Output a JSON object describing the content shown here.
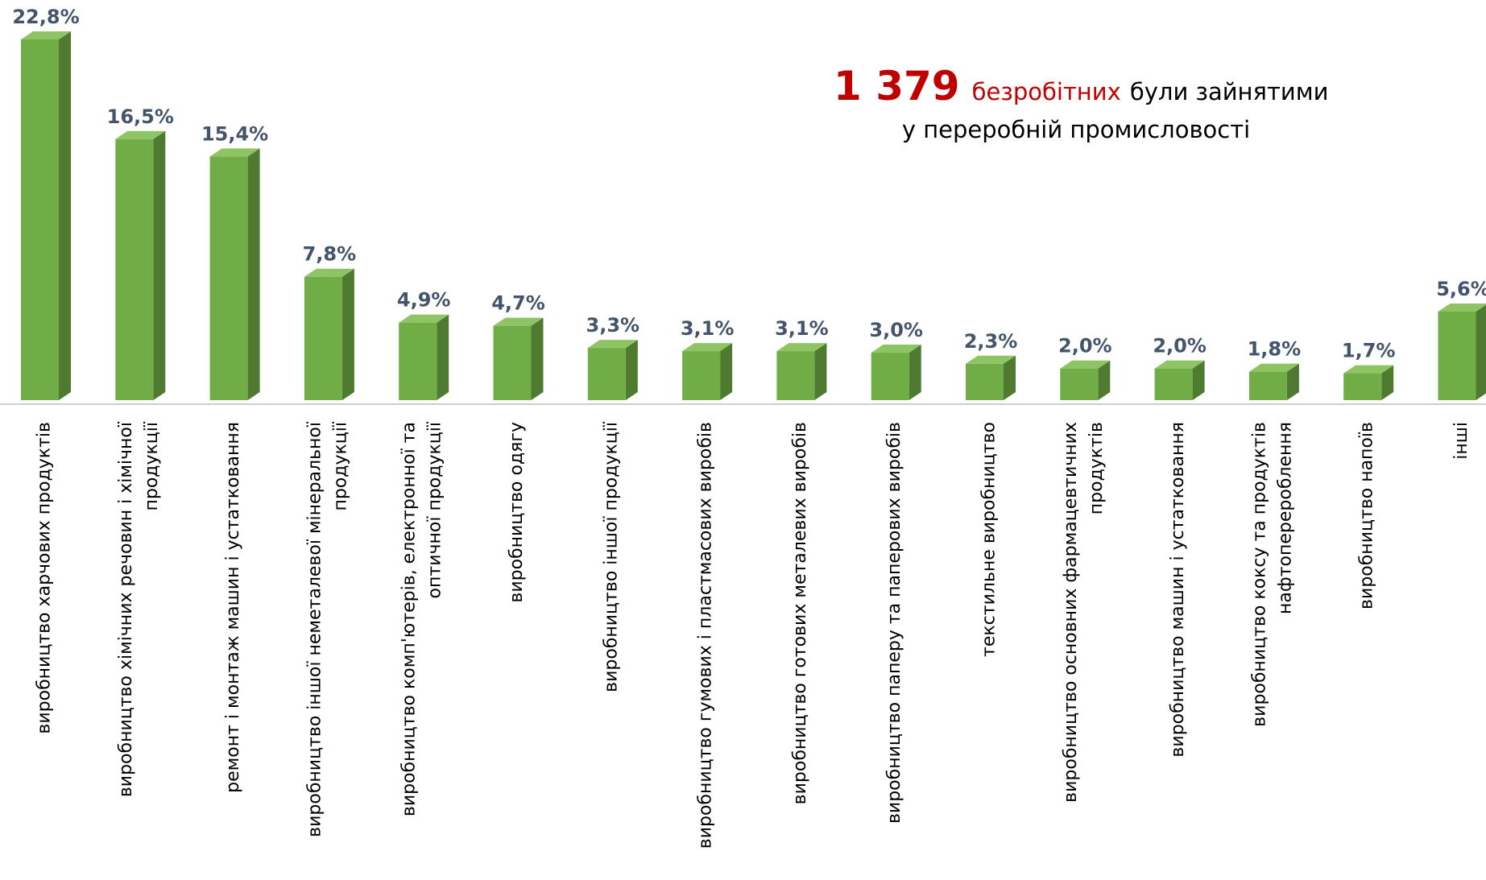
{
  "chart_data": {
    "type": "bar",
    "annotation": {
      "number": "1 379",
      "highlight": "безробітних",
      "text": "були зайнятими",
      "line2": "у переробній промисловості"
    },
    "categories": [
      [
        "виробництво харчових продуктів"
      ],
      [
        "виробництво хімічних речовин і хімічної",
        "продукції"
      ],
      [
        "ремонт і монтаж машин і устатковання"
      ],
      [
        "виробництво іншої неметалевої мінеральної",
        "продукції"
      ],
      [
        "виробництво комп'ютерів, електронної та",
        "оптичної продукції"
      ],
      [
        "виробництво одягу"
      ],
      [
        "виробництво іншої продукції"
      ],
      [
        "виробництво гумових і пластмасових виробів"
      ],
      [
        "виробництво готових металевих виробів"
      ],
      [
        "виробництво паперу та паперових виробів"
      ],
      [
        "текстильне виробництво"
      ],
      [
        "виробництво основних фармацевтичних",
        "продуктів"
      ],
      [
        "виробництво машин і устатковання"
      ],
      [
        "виробництво коксу та продуктів",
        "нафтоперероблення"
      ],
      [
        "виробництво напоїв"
      ],
      [
        "інші"
      ]
    ],
    "values": [
      22.8,
      16.5,
      15.4,
      7.8,
      4.9,
      4.7,
      3.3,
      3.1,
      3.1,
      3.0,
      2.3,
      2.0,
      2.0,
      1.8,
      1.7,
      5.6
    ],
    "value_labels": [
      "22,8%",
      "16,5%",
      "15,4%",
      "7,8%",
      "4,9%",
      "4,7%",
      "3,3%",
      "3,1%",
      "3,1%",
      "3,0%",
      "2,3%",
      "2,0%",
      "2,0%",
      "1,8%",
      "1,7%",
      "5,6%"
    ],
    "color": "#70ad47"
  }
}
